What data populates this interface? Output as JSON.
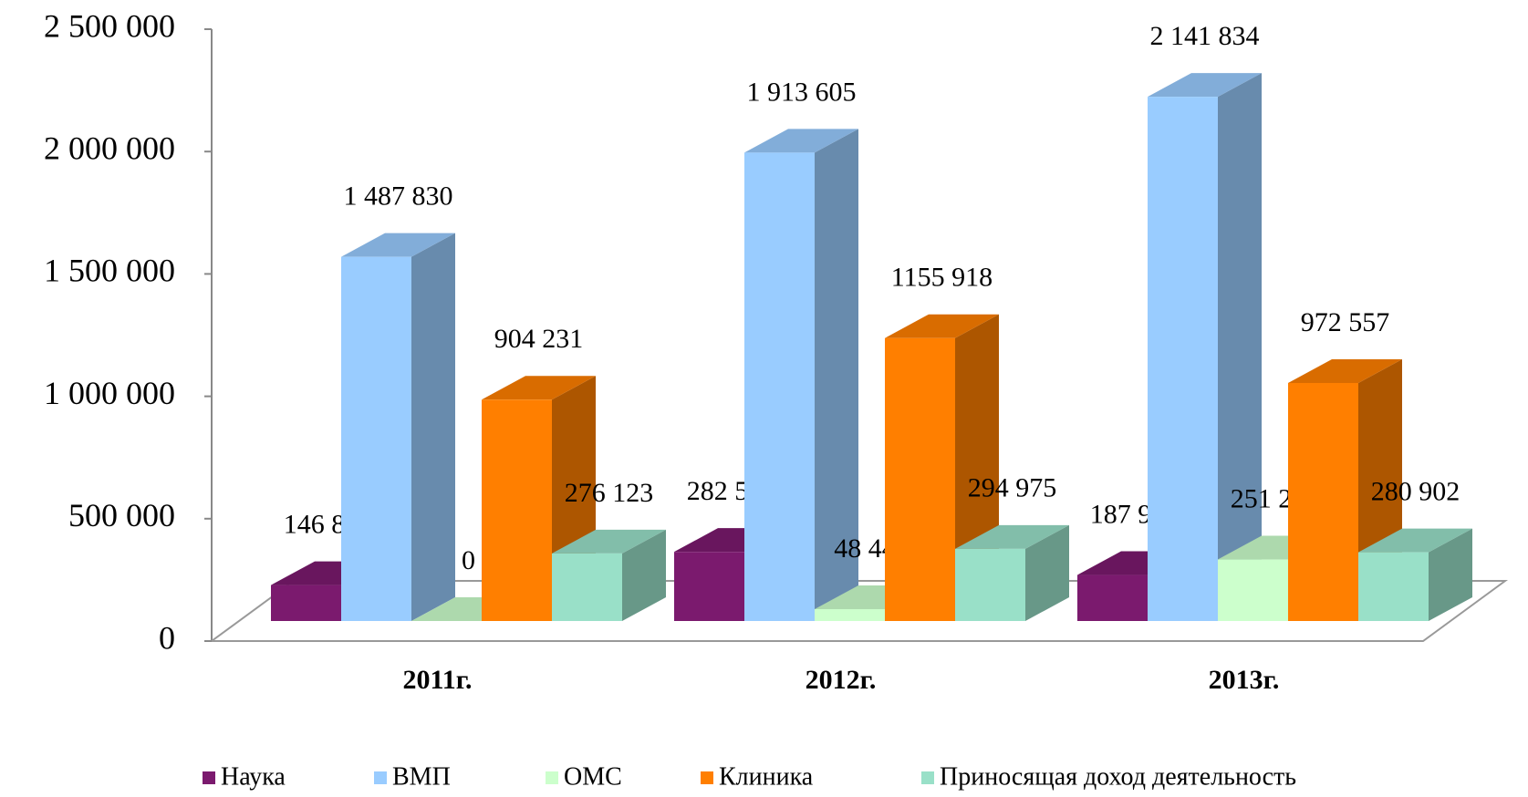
{
  "chart_data": {
    "type": "bar3d",
    "categories": [
      "2011г.",
      "2012г.",
      "2013г."
    ],
    "series": [
      {
        "name": "Наука",
        "color": "#7b1a6e",
        "values": [
          146873,
          282513,
          187963
        ],
        "value_labels": [
          "146 873",
          "282 513",
          "187 963"
        ]
      },
      {
        "name": "ВМП",
        "color": "#99ccff",
        "values": [
          1487830,
          1913605,
          2141834
        ],
        "value_labels": [
          "1 487 830",
          "1 913 605",
          "2 141 834"
        ]
      },
      {
        "name": "ОМС",
        "color": "#ccffcc",
        "values": [
          0,
          48444,
          251286
        ],
        "value_labels": [
          "0",
          "48 444",
          "251 286"
        ]
      },
      {
        "name": "Клиника",
        "color": "#ff7f00",
        "values": [
          904231,
          1155918,
          972557
        ],
        "value_labels": [
          "904 231",
          "1155 918",
          "972 557"
        ]
      },
      {
        "name": "Приносящая доход деятельность",
        "color": "#99e0c8",
        "values": [
          276123,
          294975,
          280902
        ],
        "value_labels": [
          "276 123",
          "294 975",
          "280 902"
        ]
      }
    ],
    "ylim": [
      0,
      2500000
    ],
    "yticks": [
      0,
      {
        "value": 500000,
        "label": "500 000"
      },
      {
        "value": 1000000,
        "label": "1 000 000"
      },
      {
        "value": 1500000,
        "label": "1 500 000"
      },
      {
        "value": 2000000,
        "label": "2 000 000"
      },
      {
        "value": 2500000,
        "label": "2 500 000"
      }
    ],
    "legend": "bottom"
  }
}
